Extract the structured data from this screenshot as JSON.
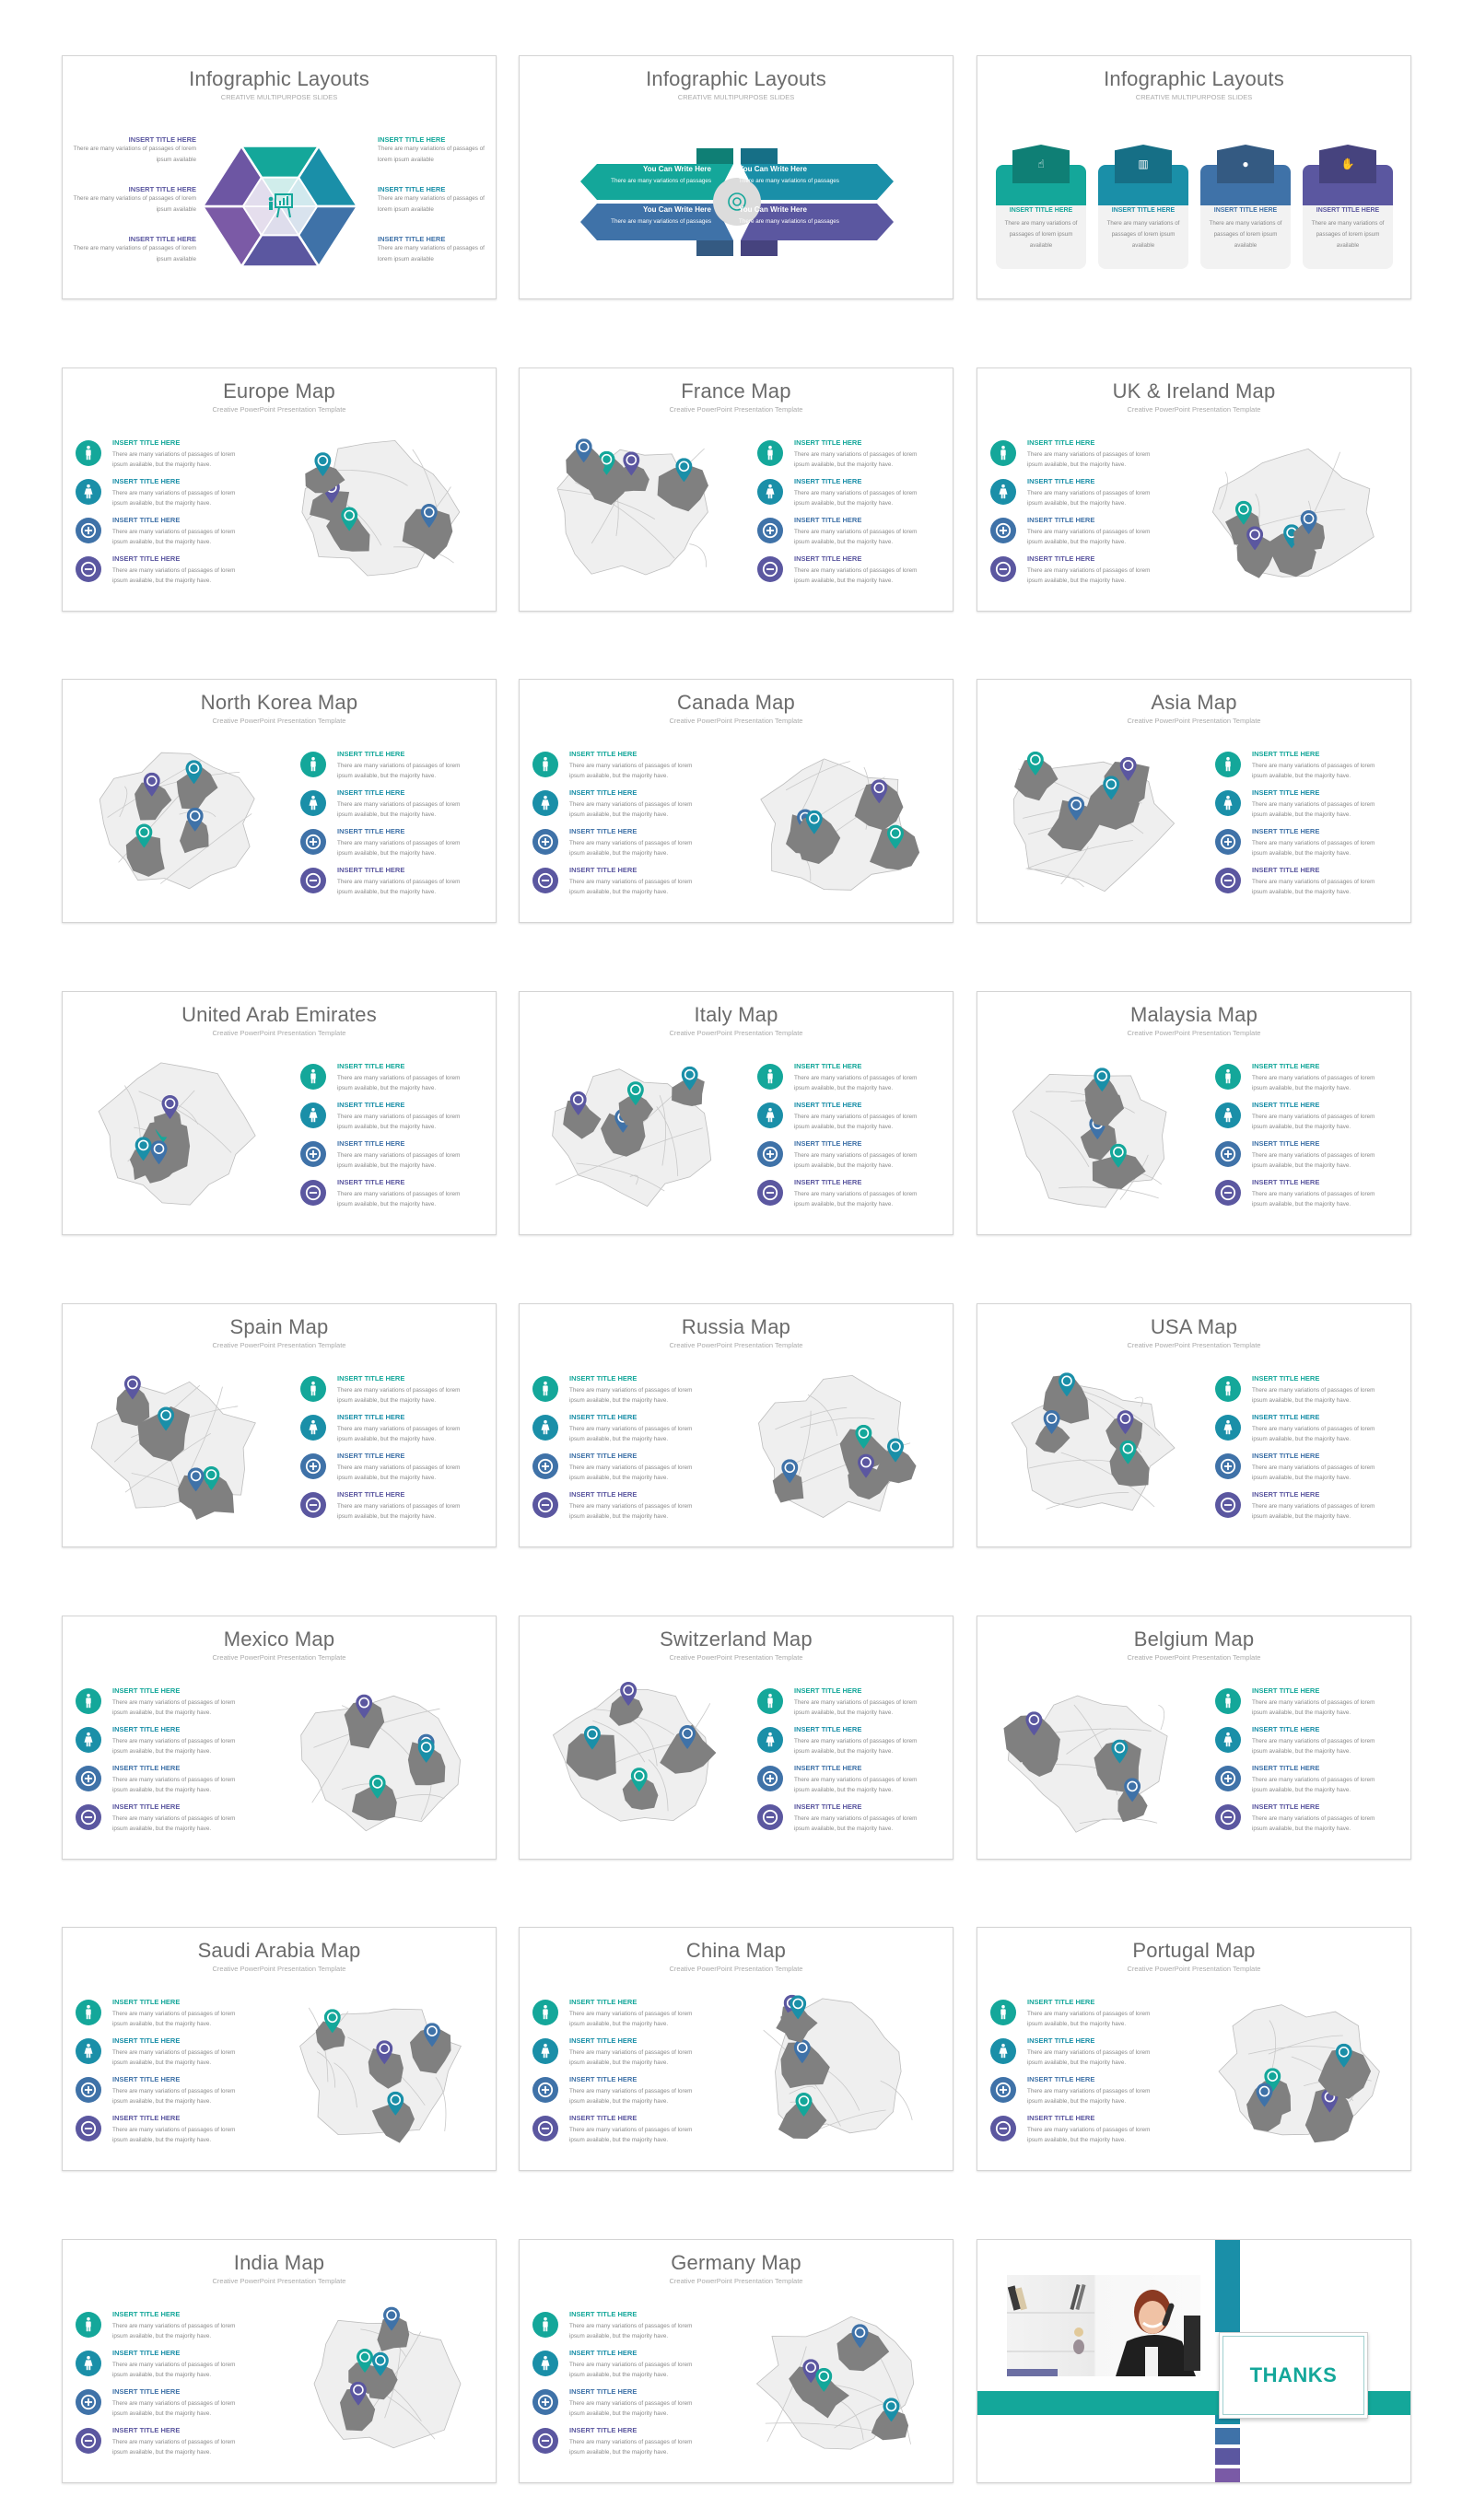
{
  "colors": {
    "teal": "#14a79a",
    "cyan": "#1a8fa8",
    "blue": "#3f72a8",
    "purple": "#5b57a0",
    "map_dark": "#808080",
    "map_light": "#efefef",
    "title": "#6b6b6b"
  },
  "common": {
    "map_subtitle": "Creative PowerPoint Presentation Template",
    "feature_title": "INSERT TITLE HERE",
    "feature_text": "There are many variations of passages of lorem ipsum available, but the majority have."
  },
  "slides": [
    {
      "id": "infographic-hexagon",
      "title": "Infographic Layouts",
      "subtitle": "CREATIVE MULTIPURPOSE SLIDES",
      "items": [
        {
          "title": "INSERT TITLE HERE",
          "text": "There are many variations of passages of lorem ipsum available"
        },
        {
          "title": "INSERT TITLE HERE",
          "text": "There are many variations of passages of lorem ipsum available"
        },
        {
          "title": "INSERT TITLE HERE",
          "text": "There are many variations of passages of lorem ipsum available"
        },
        {
          "title": "INSERT TITLE HERE",
          "text": "There are many variations of passages of lorem ipsum available"
        },
        {
          "title": "INSERT TITLE HERE",
          "text": "There are many variations of passages of lorem ipsum available"
        },
        {
          "title": "INSERT TITLE HERE",
          "text": "There are many variations of passages of lorem ipsum available"
        }
      ]
    },
    {
      "id": "infographic-arrows",
      "title": "Infographic Layouts",
      "subtitle": "CREATIVE MULTIPURPOSE SLIDES",
      "items": [
        {
          "title": "You Can Write Here",
          "text": "There are many variations of passages"
        },
        {
          "title": "You Can Write Here",
          "text": "There are many variations of passages"
        },
        {
          "title": "You Can Write Here",
          "text": "There are many variations of passages"
        },
        {
          "title": "You Can Write Here",
          "text": "There are many variations of passages"
        }
      ]
    },
    {
      "id": "infographic-cards",
      "title": "Infographic Layouts",
      "subtitle": "CREATIVE MULTIPURPOSE SLIDES",
      "items": [
        {
          "title": "INSERT TITLE HERE",
          "text": "There are many variations of passages of lorem ipsum available",
          "icon": "touch-icon"
        },
        {
          "title": "INSERT TITLE HERE",
          "text": "There are many variations of passages of lorem ipsum available",
          "icon": "chart-down-icon"
        },
        {
          "title": "INSERT TITLE HERE",
          "text": "There are many variations of passages of lorem ipsum available",
          "icon": "location-pin-icon"
        },
        {
          "title": "INSERT TITLE HERE",
          "text": "There are many variations of passages of lorem ipsum available",
          "icon": "hand-box-icon"
        }
      ]
    },
    {
      "id": "europe",
      "title": "Europe Map",
      "text_side": "left"
    },
    {
      "id": "france",
      "title": "France Map",
      "text_side": "right"
    },
    {
      "id": "uk-ireland",
      "title": "UK & Ireland Map",
      "text_side": "left"
    },
    {
      "id": "north-korea",
      "title": "North Korea Map",
      "text_side": "right"
    },
    {
      "id": "canada",
      "title": "Canada Map",
      "text_side": "left"
    },
    {
      "id": "asia",
      "title": "Asia Map",
      "text_side": "right"
    },
    {
      "id": "uae",
      "title": "United Arab Emirates",
      "text_side": "right"
    },
    {
      "id": "italy",
      "title": "Italy Map",
      "text_side": "right"
    },
    {
      "id": "malaysia",
      "title": "Malaysia Map",
      "text_side": "right"
    },
    {
      "id": "spain",
      "title": "Spain Map",
      "text_side": "right"
    },
    {
      "id": "russia",
      "title": "Russia Map",
      "text_side": "left"
    },
    {
      "id": "usa",
      "title": "USA Map",
      "text_side": "right"
    },
    {
      "id": "mexico",
      "title": "Mexico Map",
      "text_side": "left"
    },
    {
      "id": "switzerland",
      "title": "Switzerland Map",
      "text_side": "right"
    },
    {
      "id": "belgium",
      "title": "Belgium Map",
      "text_side": "right"
    },
    {
      "id": "saudi-arabia",
      "title": "Saudi Arabia Map",
      "text_side": "left"
    },
    {
      "id": "china",
      "title": "China Map",
      "text_side": "left"
    },
    {
      "id": "portugal",
      "title": "Portugal Map",
      "text_side": "left"
    },
    {
      "id": "india",
      "title": "India Map",
      "text_side": "left"
    },
    {
      "id": "germany",
      "title": "Germany Map",
      "text_side": "left"
    },
    {
      "id": "thanks",
      "title": "THANKS"
    }
  ],
  "feature_icons": [
    "male-icon",
    "female-icon",
    "plus-circle-icon",
    "minus-circle-icon"
  ]
}
